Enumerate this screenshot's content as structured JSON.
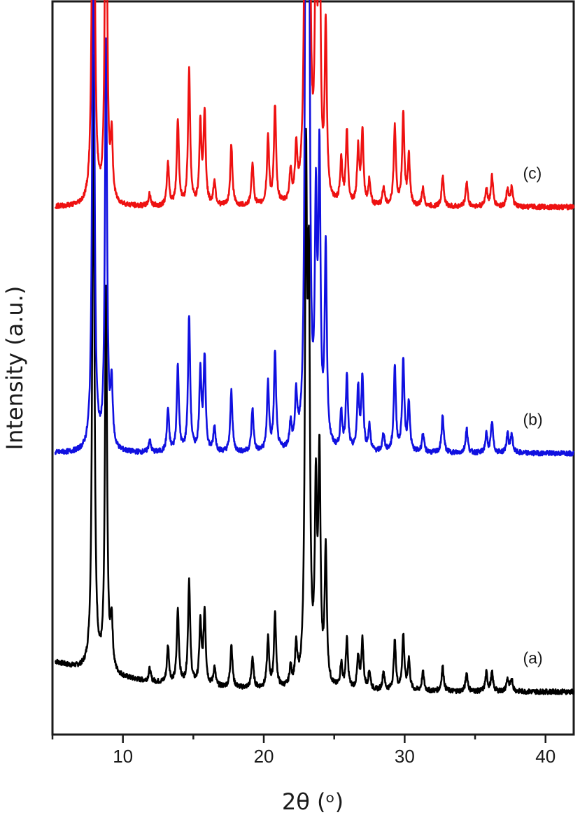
{
  "chart_data": {
    "type": "line",
    "xlabel": "2θ (ᵒ)",
    "ylabel": "Intensity (a.u.)",
    "xlim": [
      5,
      42
    ],
    "ylim": [
      0,
      1.2
    ],
    "x_ticks": [
      10,
      20,
      30,
      40
    ],
    "grid": false,
    "legend": "none",
    "peaks_2theta": [
      7.9,
      8.8,
      9.2,
      11.9,
      13.2,
      13.9,
      14.7,
      15.5,
      15.8,
      16.5,
      17.7,
      19.2,
      20.3,
      20.8,
      21.9,
      22.3,
      23.0,
      23.2,
      23.7,
      23.95,
      24.4,
      25.5,
      25.9,
      26.7,
      27.0,
      27.5,
      28.5,
      29.3,
      29.9,
      30.3,
      31.3,
      32.7,
      34.4,
      35.8,
      36.2,
      37.3,
      37.6
    ],
    "series": [
      {
        "label": "(a)",
        "color": "#000000",
        "offset": 0.0,
        "background": 0.05,
        "heights": [
          1.0,
          0.62,
          0.08,
          0.02,
          0.06,
          0.12,
          0.17,
          0.1,
          0.12,
          0.03,
          0.07,
          0.05,
          0.08,
          0.12,
          0.03,
          0.06,
          0.8,
          0.6,
          0.3,
          0.36,
          0.22,
          0.04,
          0.08,
          0.05,
          0.08,
          0.03,
          0.03,
          0.08,
          0.09,
          0.05,
          0.03,
          0.04,
          0.03,
          0.03,
          0.03,
          0.02,
          0.02
        ]
      },
      {
        "label": "(b)",
        "color": "#1010e0",
        "offset": 0.4,
        "background": 0.0,
        "heights": [
          0.98,
          0.66,
          0.1,
          0.02,
          0.07,
          0.14,
          0.22,
          0.13,
          0.15,
          0.04,
          0.1,
          0.07,
          0.11,
          0.16,
          0.04,
          0.08,
          1.07,
          0.8,
          0.36,
          0.45,
          0.32,
          0.06,
          0.12,
          0.1,
          0.12,
          0.04,
          0.03,
          0.14,
          0.15,
          0.08,
          0.03,
          0.06,
          0.04,
          0.03,
          0.05,
          0.03,
          0.03
        ]
      },
      {
        "label": "(c)",
        "color": "#ee1111",
        "offset": 0.8,
        "background": 0.0,
        "heights": [
          1.0,
          0.68,
          0.1,
          0.02,
          0.07,
          0.14,
          0.22,
          0.13,
          0.15,
          0.04,
          0.1,
          0.07,
          0.11,
          0.16,
          0.05,
          0.08,
          1.08,
          0.8,
          0.38,
          0.48,
          0.28,
          0.07,
          0.12,
          0.09,
          0.12,
          0.04,
          0.03,
          0.13,
          0.15,
          0.08,
          0.03,
          0.05,
          0.04,
          0.03,
          0.05,
          0.03,
          0.03
        ]
      }
    ]
  }
}
